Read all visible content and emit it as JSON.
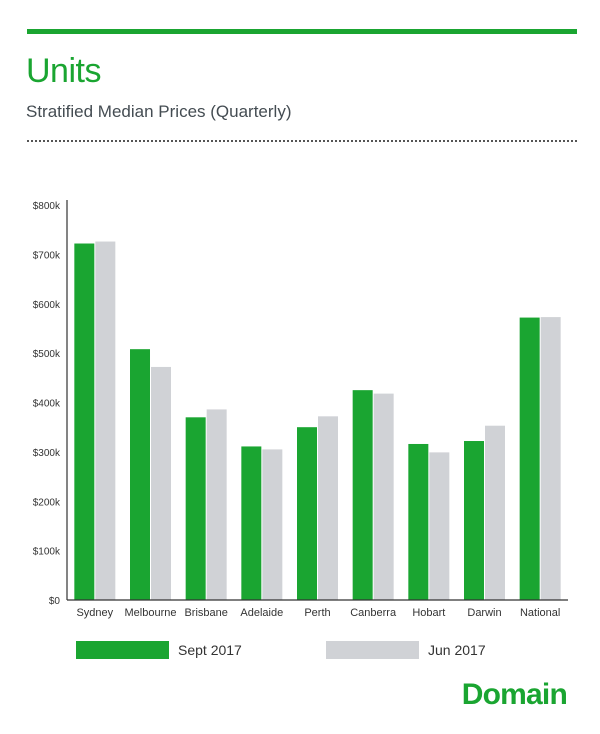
{
  "header": {
    "title": "Units",
    "subtitle": "Stratified Median Prices (Quarterly)"
  },
  "colors": {
    "accent": "#1aa531",
    "sept_2017": "#1aa531",
    "jun_2017": "#d0d2d6",
    "axis": "#333333",
    "subtitle": "#444c52"
  },
  "chart_data": {
    "type": "bar",
    "title": "",
    "xlabel": "",
    "ylabel": "",
    "categories": [
      "Sydney",
      "Melbourne",
      "Brisbane",
      "Adelaide",
      "Perth",
      "Canberra",
      "Hobart",
      "Darwin",
      "National"
    ],
    "series": [
      {
        "name": "Sept 2017",
        "values": [
          722,
          508,
          370,
          311,
          350,
          425,
          316,
          322,
          572
        ]
      },
      {
        "name": "Jun 2017",
        "values": [
          726,
          472,
          386,
          305,
          372,
          418,
          299,
          353,
          573
        ]
      }
    ],
    "ylim": [
      0,
      800
    ],
    "yticks": [
      0,
      100,
      200,
      300,
      400,
      500,
      600,
      700,
      800
    ],
    "ytick_labels": [
      "$0",
      "$100k",
      "$200k",
      "$300k",
      "$400k",
      "$500k",
      "$600k",
      "$700k",
      "$800k"
    ],
    "grid": false,
    "legend_placement": "bottom"
  },
  "legend": {
    "items": [
      {
        "label": "Sept 2017",
        "color": "#1aa531"
      },
      {
        "label": "Jun 2017",
        "color": "#d0d2d6"
      }
    ]
  },
  "brand": {
    "name": "Domain"
  }
}
